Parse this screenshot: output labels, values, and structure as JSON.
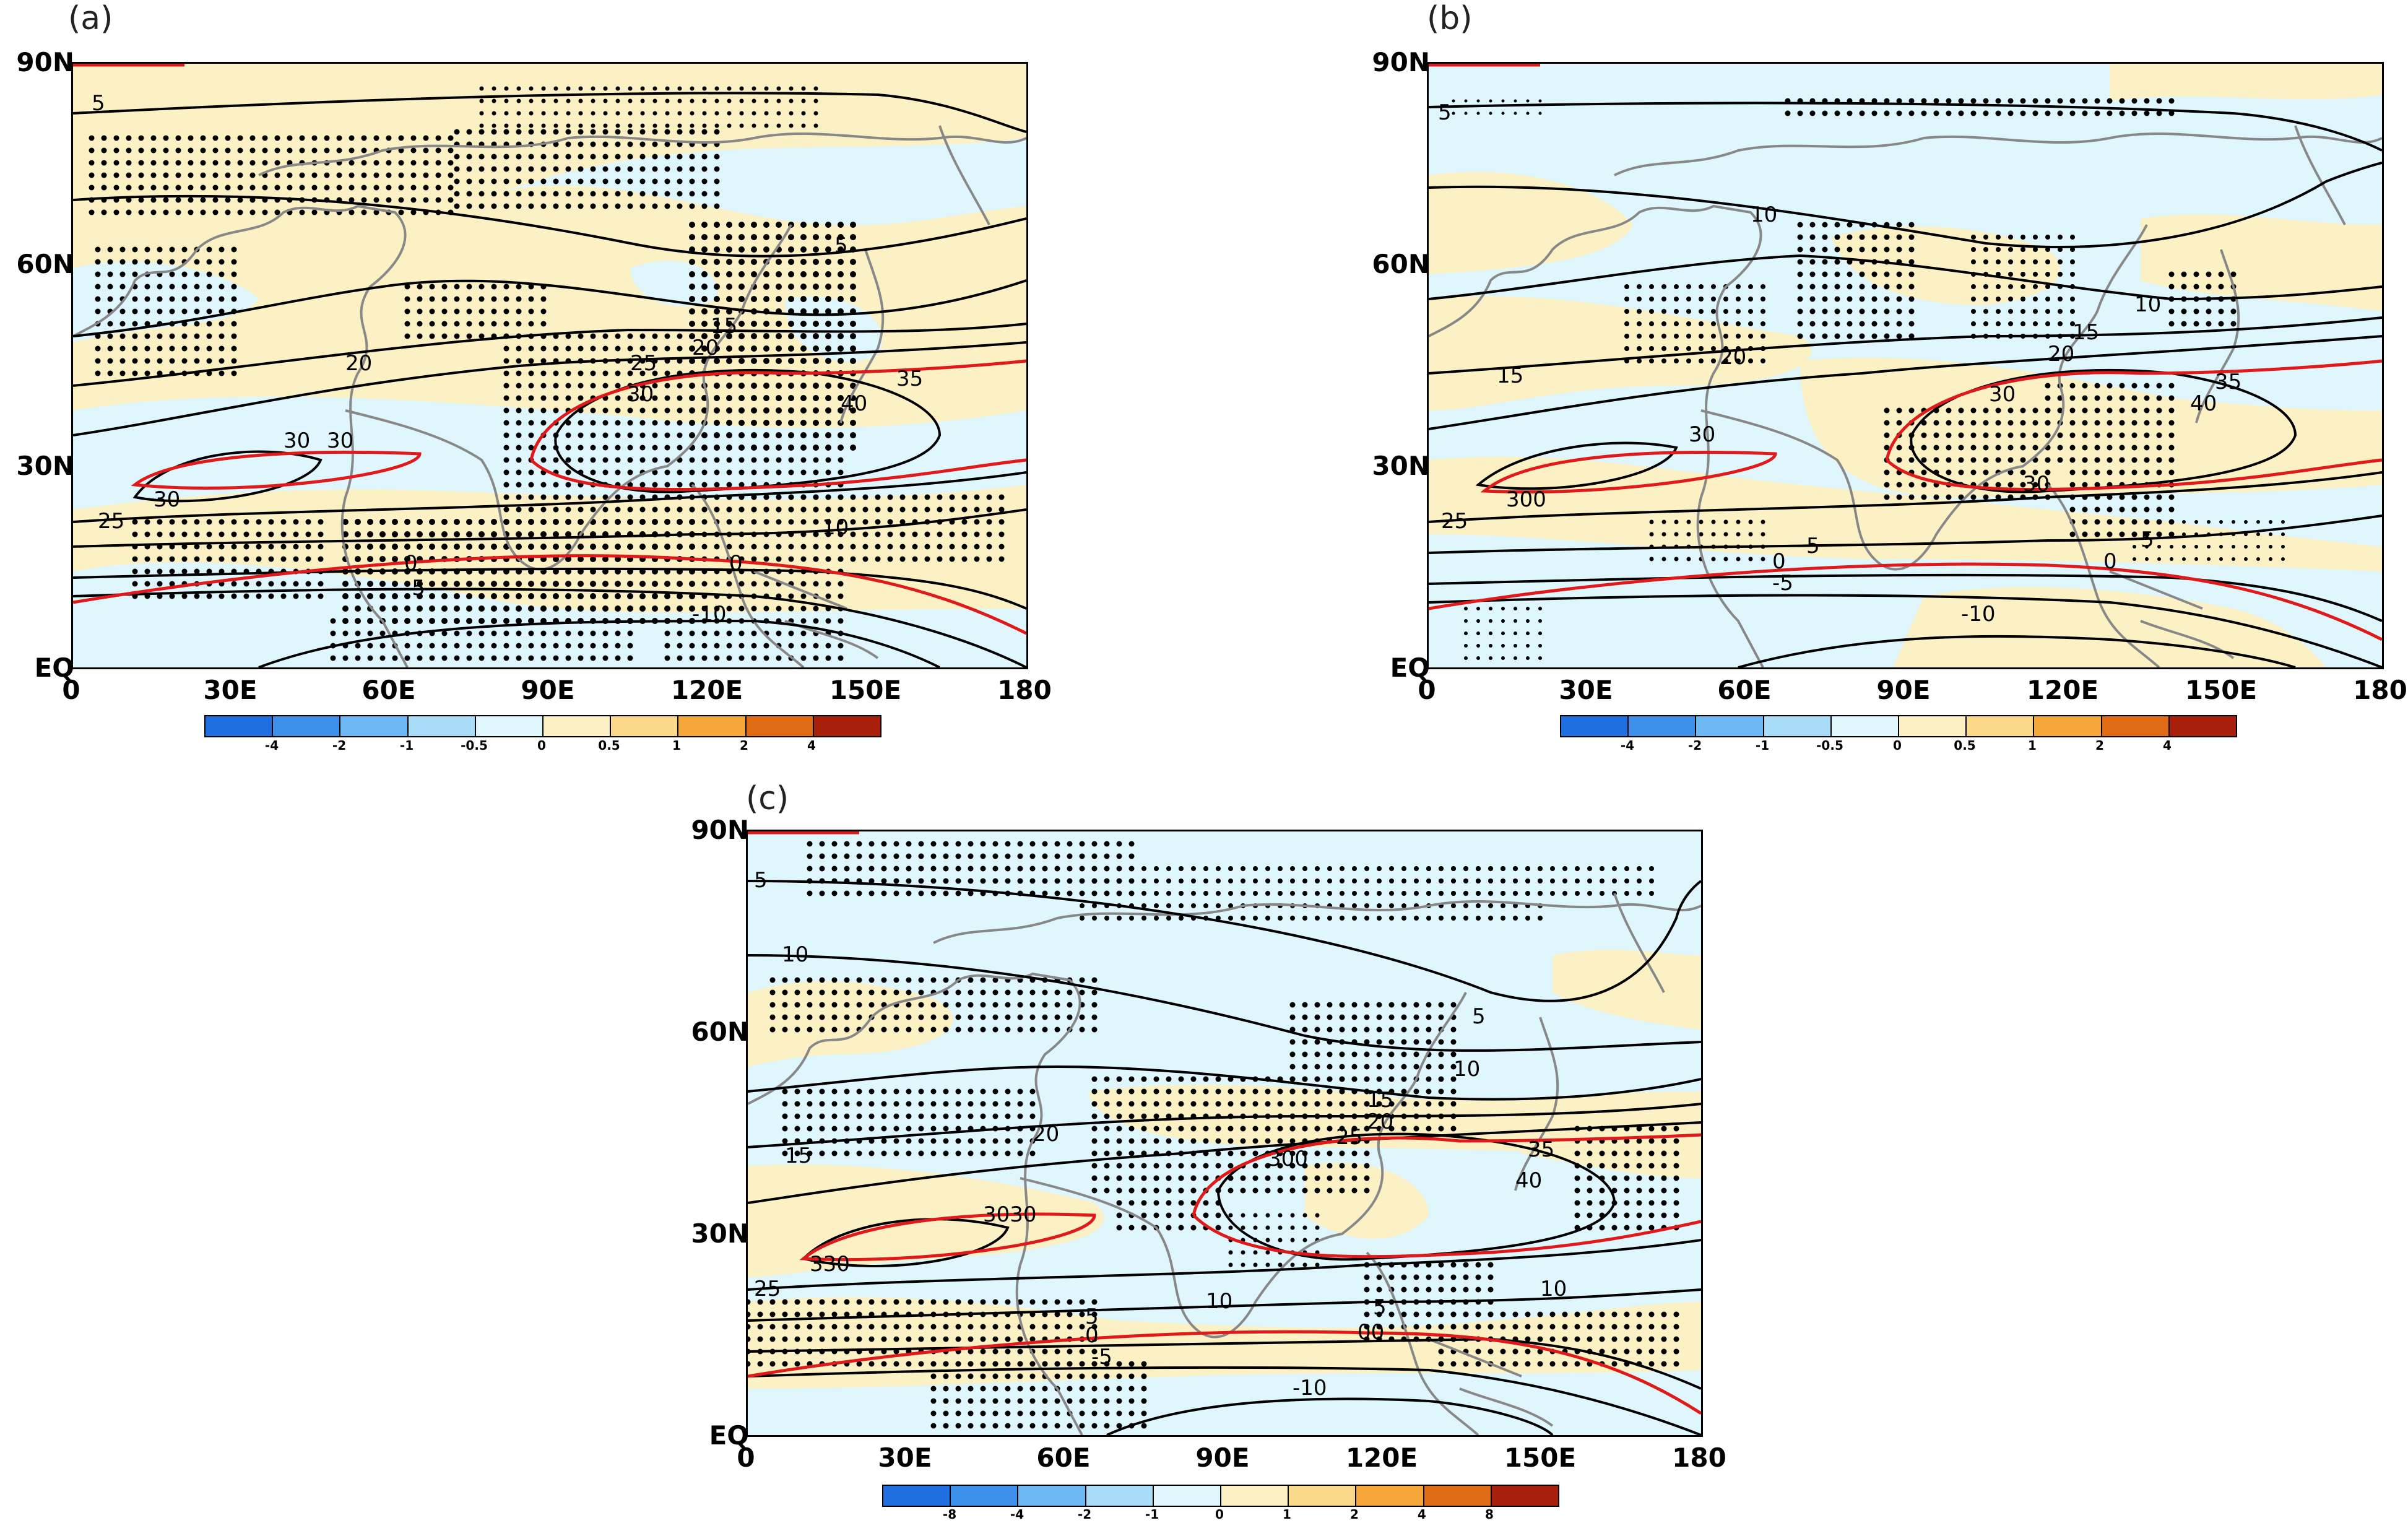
{
  "panels": [
    {
      "label": "(a)",
      "lat_labels": [
        "90N",
        "60N",
        "30N",
        "EQ"
      ],
      "lon_labels": [
        "0",
        "30E",
        "60E",
        "90E",
        "120E",
        "150E",
        "180"
      ],
      "colorbar_labels": [
        "-4",
        "-2",
        "-1",
        "-0.5",
        "0",
        "0.5",
        "1",
        "2",
        "4"
      ],
      "contour_labels": [
        "5",
        "5",
        "20",
        "25",
        "30",
        "20",
        "15",
        "35",
        "40",
        "30",
        "30",
        "30",
        "25",
        "10",
        "0",
        "-5",
        "0",
        "-10"
      ]
    },
    {
      "label": "(b)",
      "lat_labels": [
        "90N",
        "60N",
        "30N",
        "EQ"
      ],
      "lon_labels": [
        "0",
        "30E",
        "60E",
        "90E",
        "120E",
        "150E",
        "180"
      ],
      "colorbar_labels": [
        "-4",
        "-2",
        "-1",
        "-0.5",
        "0",
        "0.5",
        "1",
        "2",
        "4"
      ],
      "contour_labels": [
        "5",
        "10",
        "10",
        "15",
        "20",
        "20",
        "15",
        "35",
        "40",
        "30",
        "30",
        "300",
        "25",
        "30",
        "0",
        "-5",
        "5",
        "0",
        "5",
        "-10"
      ]
    },
    {
      "label": "(c)",
      "lat_labels": [
        "90N",
        "60N",
        "30N",
        "EQ"
      ],
      "lon_labels": [
        "0",
        "30E",
        "60E",
        "90E",
        "120E",
        "150E",
        "180"
      ],
      "colorbar_labels": [
        "-8",
        "-4",
        "-2",
        "-1",
        "0",
        "1",
        "2",
        "4",
        "8"
      ],
      "contour_labels": [
        "5",
        "10",
        "5",
        "10",
        "15",
        "20",
        "15",
        "20",
        "25",
        "300",
        "35",
        "40",
        "3030",
        "330",
        "25",
        "10",
        "10",
        "5",
        "0",
        "-5",
        "5",
        "00",
        "-10"
      ]
    }
  ],
  "colors": {
    "shade_neg_strong": "#1f6fe0",
    "shade_neg_2": "#3d8fea",
    "shade_neg_3": "#6db7f2",
    "shade_neg_weak": "#a9dcf7",
    "shade_neg_faint": "#dff6fd",
    "shade_pos_faint": "#fbf1c4",
    "shade_pos_weak": "#fbd98a",
    "shade_pos_2": "#f6a73a",
    "shade_pos_3": "#e06d15",
    "shade_pos_strong": "#a8200c",
    "contour": "#000000",
    "highlight_contour": "#e0191a",
    "coastline": "#888888",
    "stipple": "#000000"
  }
}
